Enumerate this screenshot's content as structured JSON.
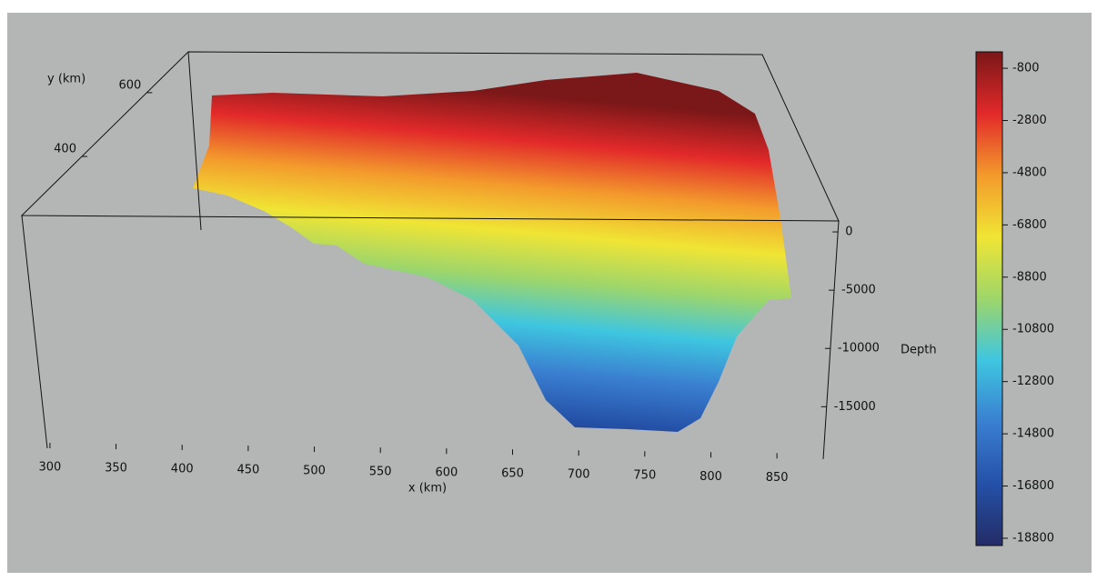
{
  "chart_data": {
    "type": "surface",
    "xlabel": "x (km)",
    "ylabel": "y (km)",
    "zlabel": "Depth",
    "xlim": [
      298,
      885
    ],
    "xticks": [
      300,
      350,
      400,
      450,
      500,
      550,
      600,
      650,
      700,
      750,
      800,
      850
    ],
    "ylim": [
      215,
      728
    ],
    "yticks": [
      400,
      600
    ],
    "zlim": [
      -19500,
      940
    ],
    "zticks": [
      0,
      -5000,
      -10000,
      -15000
    ],
    "clim": [
      -19080,
      -170
    ],
    "cticks": [
      -800,
      -2800,
      -4800,
      -6800,
      -8800,
      -10800,
      -12800,
      -14800,
      -16800,
      -18800
    ],
    "colormap": [
      "#232c66",
      "#2451a8",
      "#3a7fd0",
      "#3ec6e0",
      "#9ed66a",
      "#f0e534",
      "#f39a2c",
      "#e2292a",
      "#7a1718"
    ]
  }
}
